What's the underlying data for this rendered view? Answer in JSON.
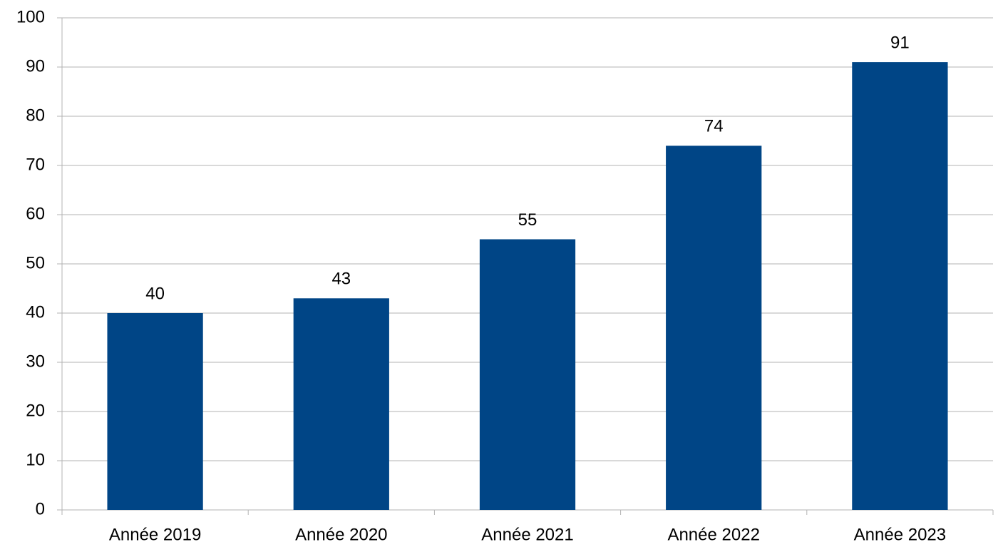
{
  "chart_data": {
    "type": "bar",
    "categories": [
      "Année 2019",
      "Année 2020",
      "Année 2021",
      "Année 2022",
      "Année 2023"
    ],
    "values": [
      40,
      43,
      55,
      74,
      91
    ],
    "color": "#004586",
    "ylim": [
      0,
      100
    ],
    "yticks": [
      0,
      10,
      20,
      30,
      40,
      50,
      60,
      70,
      80,
      90,
      100
    ],
    "grid": true
  }
}
